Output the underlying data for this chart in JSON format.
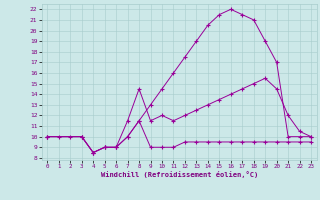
{
  "xlabel": "Windchill (Refroidissement éolien,°C)",
  "bg_color": "#cce8e8",
  "line_color": "#990099",
  "xlim": [
    -0.5,
    23.5
  ],
  "ylim": [
    7.8,
    22.5
  ],
  "xticks": [
    0,
    1,
    2,
    3,
    4,
    5,
    6,
    7,
    8,
    9,
    10,
    11,
    12,
    13,
    14,
    15,
    16,
    17,
    18,
    19,
    20,
    21,
    22,
    23
  ],
  "yticks": [
    8,
    9,
    10,
    11,
    12,
    13,
    14,
    15,
    16,
    17,
    18,
    19,
    20,
    21,
    22
  ],
  "line1_x": [
    0,
    1,
    2,
    3,
    4,
    5,
    6,
    7,
    8,
    9,
    10,
    11,
    12,
    13,
    14,
    15,
    16,
    17,
    18,
    19,
    20,
    21,
    22,
    23
  ],
  "line1_y": [
    10,
    10,
    10,
    10,
    8.5,
    9,
    9,
    10,
    11.5,
    13,
    14.5,
    16,
    17.5,
    19,
    20.5,
    21.5,
    22,
    21.5,
    21,
    19,
    17,
    10,
    10,
    10
  ],
  "line2_x": [
    0,
    3,
    4,
    5,
    6,
    7,
    8,
    9,
    10,
    11,
    12,
    13,
    14,
    15,
    16,
    17,
    18,
    19,
    20,
    21,
    22,
    23
  ],
  "line2_y": [
    10,
    10,
    8.5,
    9,
    9,
    11.5,
    14.5,
    11.5,
    12,
    11.5,
    12,
    12.5,
    13,
    13.5,
    14,
    14.5,
    15,
    15.5,
    14.5,
    12,
    10.5,
    10
  ],
  "line3_x": [
    0,
    3,
    4,
    5,
    6,
    7,
    8,
    9,
    10,
    11,
    12,
    13,
    14,
    15,
    16,
    17,
    18,
    19,
    20,
    21,
    22,
    23
  ],
  "line3_y": [
    10,
    10,
    8.5,
    9,
    9,
    10,
    11.5,
    9,
    9,
    9,
    9.5,
    9.5,
    9.5,
    9.5,
    9.5,
    9.5,
    9.5,
    9.5,
    9.5,
    9.5,
    9.5,
    9.5
  ]
}
